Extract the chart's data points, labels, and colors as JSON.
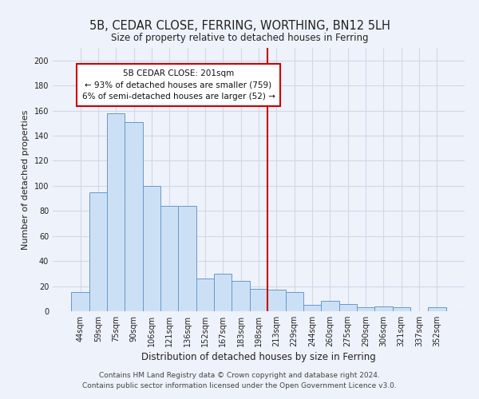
{
  "title": "5B, CEDAR CLOSE, FERRING, WORTHING, BN12 5LH",
  "subtitle": "Size of property relative to detached houses in Ferring",
  "xlabel": "Distribution of detached houses by size in Ferring",
  "ylabel": "Number of detached properties",
  "categories": [
    "44sqm",
    "59sqm",
    "75sqm",
    "90sqm",
    "106sqm",
    "121sqm",
    "136sqm",
    "152sqm",
    "167sqm",
    "183sqm",
    "198sqm",
    "213sqm",
    "229sqm",
    "244sqm",
    "260sqm",
    "275sqm",
    "290sqm",
    "306sqm",
    "321sqm",
    "337sqm",
    "352sqm"
  ],
  "values": [
    15,
    95,
    158,
    151,
    100,
    84,
    84,
    26,
    30,
    24,
    18,
    17,
    15,
    5,
    8,
    6,
    3,
    4,
    3,
    0,
    3
  ],
  "bar_color": "#cce0f5",
  "bar_edge_color": "#6699cc",
  "vline_x_index": 10,
  "vline_color": "#cc0000",
  "annotation_title": "5B CEDAR CLOSE: 201sqm",
  "annotation_line1": "← 93% of detached houses are smaller (759)",
  "annotation_line2": "6% of semi-detached houses are larger (52) →",
  "annotation_box_edgecolor": "#cc0000",
  "annotation_box_facecolor": "#ffffff",
  "ylim": [
    0,
    210
  ],
  "yticks": [
    0,
    20,
    40,
    60,
    80,
    100,
    120,
    140,
    160,
    180,
    200
  ],
  "footer_line1": "Contains HM Land Registry data © Crown copyright and database right 2024.",
  "footer_line2": "Contains public sector information licensed under the Open Government Licence v3.0.",
  "bg_color": "#eef2fa",
  "grid_color": "#d0d8e8",
  "title_fontsize": 10.5,
  "xlabel_fontsize": 8.5,
  "ylabel_fontsize": 8,
  "tick_fontsize": 7,
  "footer_fontsize": 6.5,
  "ann_fontsize": 7.5
}
